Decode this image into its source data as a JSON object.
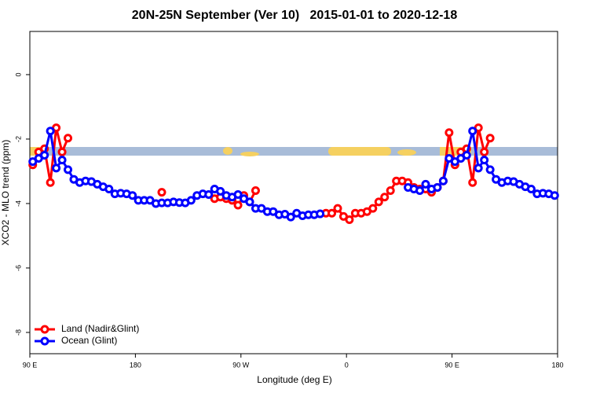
{
  "chart_data": {
    "type": "line",
    "title": "20N-25N September (Ver 10)   2015-01-01 to 2020-12-18",
    "x_label": "Longitude (deg E)",
    "y_label": "XCO2 - MLO trend (ppm)",
    "xlim": [
      90,
      540
    ],
    "ylim": [
      -8.66,
      1.34
    ],
    "xticks": [
      {
        "value": 90,
        "label": "90 E"
      },
      180,
      {
        "value": 270,
        "label": "90 W"
      },
      {
        "value": 360,
        "label": "0"
      },
      {
        "value": 450,
        "label": "90 E"
      },
      {
        "value": 540,
        "label": "180"
      }
    ],
    "yticks": [
      0,
      -2,
      -4,
      -6,
      -8
    ],
    "legend": "bottomleft",
    "x": [
      92.5,
      97.5,
      102.5,
      107.5,
      112.5,
      117.5,
      122.5,
      127.5,
      132.5,
      137.5,
      142.5,
      147.5,
      152.5,
      157.5,
      162.5,
      167.5,
      172.5,
      177.5,
      182.5,
      187.5,
      192.5,
      197.5,
      202.5,
      207.5,
      212.5,
      217.5,
      222.5,
      227.5,
      232.5,
      237.5,
      242.5,
      247.5,
      252.5,
      257.5,
      262.5,
      267.5,
      272.5,
      277.5,
      282.5,
      287.5,
      292.5,
      297.5,
      302.5,
      307.5,
      312.5,
      317.5,
      322.5,
      327.5,
      332.5,
      337.5,
      342.5,
      347.5,
      352.5,
      357.5,
      362.5,
      367.5,
      372.5,
      377.5,
      382.5,
      387.5,
      392.5,
      397.5,
      402.5,
      407.5,
      412.5,
      417.5,
      422.5,
      427.5,
      432.5,
      437.5,
      442.5,
      447.5,
      452.5,
      457.5,
      462.5,
      467.5,
      472.5,
      477.5,
      482.5,
      487.5,
      492.5,
      497.5,
      502.5,
      507.5,
      512.5,
      517.5,
      522.5,
      527.5,
      532.5,
      537.5
    ],
    "series": [
      {
        "name": "Land (Nadir&Glint)",
        "color": "#ff0000",
        "values": [
          -2.8,
          -2.4,
          -2.3,
          -3.35,
          -1.65,
          -2.4,
          -1.97,
          null,
          null,
          null,
          null,
          null,
          null,
          null,
          null,
          null,
          null,
          null,
          null,
          null,
          null,
          null,
          -3.65,
          null,
          null,
          null,
          null,
          null,
          null,
          null,
          null,
          -3.85,
          -3.8,
          -3.85,
          -3.9,
          -4.05,
          -3.75,
          -3.95,
          -3.6,
          null,
          null,
          null,
          null,
          null,
          null,
          null,
          null,
          null,
          null,
          null,
          -4.3,
          -4.3,
          -4.15,
          -4.4,
          -4.5,
          -4.3,
          -4.3,
          -4.25,
          -4.15,
          -3.95,
          -3.8,
          -3.6,
          -3.3,
          -3.3,
          -3.35,
          -3.5,
          -3.55,
          -3.55,
          -3.65,
          -3.5,
          -3.3,
          -1.8,
          -2.8,
          -2.4,
          -2.3,
          -3.35,
          -1.65,
          -2.4,
          -1.97,
          null,
          null,
          null,
          null,
          null,
          null,
          null,
          null,
          null,
          null,
          null
        ]
      },
      {
        "name": "Ocean (Glint)",
        "color": "#0000ff",
        "values": [
          -2.7,
          -2.6,
          -2.5,
          -1.75,
          -2.9,
          -2.65,
          -2.95,
          -3.25,
          -3.35,
          -3.3,
          -3.32,
          -3.4,
          -3.48,
          -3.55,
          -3.7,
          -3.68,
          -3.7,
          -3.75,
          -3.9,
          -3.9,
          -3.9,
          -4.0,
          -3.98,
          -3.98,
          -3.95,
          -3.97,
          -3.98,
          -3.9,
          -3.75,
          -3.7,
          -3.72,
          -3.55,
          -3.62,
          -3.75,
          -3.8,
          -3.72,
          -3.85,
          -3.95,
          -4.15,
          -4.15,
          -4.25,
          -4.25,
          -4.35,
          -4.33,
          -4.42,
          -4.3,
          -4.38,
          -4.35,
          -4.35,
          -4.32,
          null,
          null,
          null,
          null,
          null,
          null,
          null,
          null,
          null,
          null,
          null,
          null,
          null,
          null,
          -3.5,
          -3.55,
          -3.6,
          -3.4,
          -3.55,
          -3.5,
          -3.3,
          -2.6,
          -2.7,
          -2.6,
          -2.5,
          -1.75,
          -2.9,
          -2.65,
          -2.95,
          -3.25,
          -3.35,
          -3.3,
          -3.32,
          -3.4,
          -3.48,
          -3.55,
          -3.7,
          -3.68,
          -3.7,
          -3.75
        ]
      }
    ]
  }
}
